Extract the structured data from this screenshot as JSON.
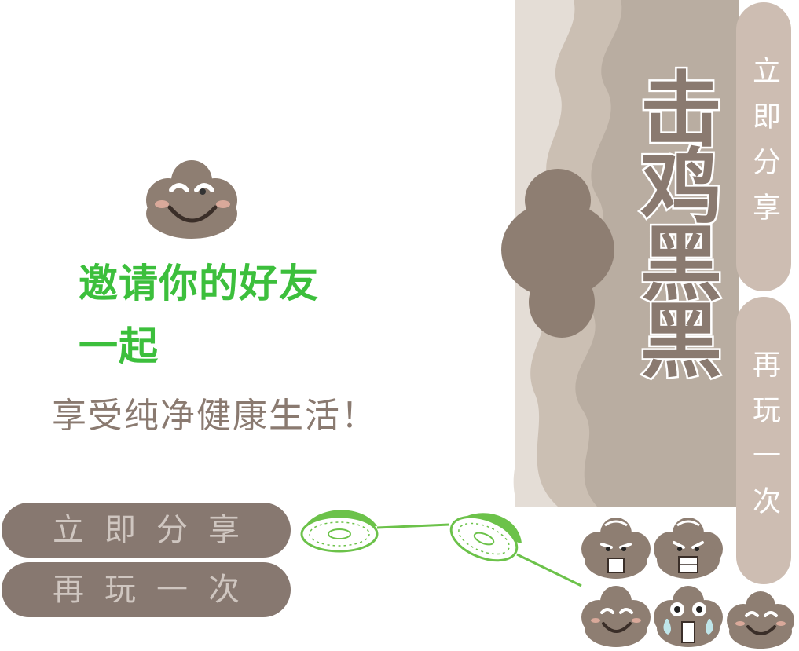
{
  "game": {
    "title": "击鸡黑黑",
    "invite_line1": "邀请你的好友",
    "invite_line2": "一起",
    "slogan": "享受纯净健康生活！"
  },
  "buttons": {
    "share_label": "立即分享",
    "replay_label": "再玩一次"
  },
  "side_tabs": {
    "share_label": "立即分享",
    "replay_label": "再玩一次"
  },
  "colors": {
    "accent_green": "#3cbf3c",
    "brown": "#877870",
    "tab_tan": "#cdbdb2",
    "mountain_light": "#e4ddd6",
    "mountain_mid": "#cbbfb3",
    "mountain_dark": "#b4a89c"
  },
  "icons": [
    "smiling-cloud-mascot-icon",
    "green-leaf-racket-icon",
    "angry-cloud-icon",
    "scared-cloud-icon",
    "crying-cloud-icon",
    "happy-cloud-icon"
  ]
}
